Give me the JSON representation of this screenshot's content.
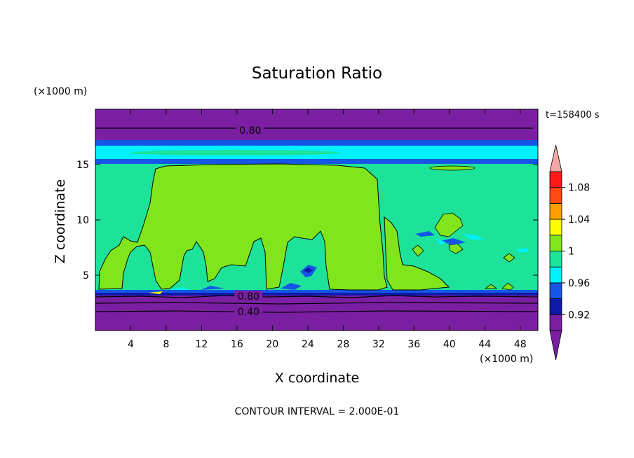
{
  "chart_data": {
    "type": "heatmap",
    "title": "Saturation Ratio",
    "time_label": "t=158400 s",
    "xlabel": "X coordinate",
    "ylabel": "Z coordinate",
    "x_unit": "(×1000 m)",
    "y_unit": "(×1000 m)",
    "footer": "CONTOUR INTERVAL = 2.000E-01",
    "xlim": [
      0,
      50
    ],
    "ylim": [
      0,
      20
    ],
    "x_ticks": [
      4,
      8,
      12,
      16,
      20,
      24,
      28,
      32,
      36,
      40,
      44,
      48
    ],
    "y_ticks": [
      5,
      10,
      15
    ],
    "contour_labels": [
      {
        "text": "0.80",
        "x": 17.5,
        "z": 18.1
      },
      {
        "text": "0.80",
        "x": 17.3,
        "z": 3.1
      },
      {
        "text": "0.40",
        "x": 17.3,
        "z": 1.7
      }
    ],
    "colorbar": {
      "levels": [
        0.92,
        0.94,
        0.96,
        0.98,
        1.0,
        1.02,
        1.04,
        1.06,
        1.08,
        1.1
      ],
      "tick_labels": [
        "0.92",
        "0.96",
        "1",
        "1.04",
        "1.08"
      ],
      "colors": {
        "below": "#7b1fa2",
        "0.92": "#0d1aa8",
        "0.94": "#1556e6",
        "0.96": "#00f0ff",
        "0.98": "#1de39a",
        "1.00": "#80e61b",
        "1.02": "#ffff00",
        "1.04": "#ff9f00",
        "1.06": "#ff4a12",
        "1.08": "#ff1a1a",
        "above": "#f4a6a6"
      }
    }
  }
}
